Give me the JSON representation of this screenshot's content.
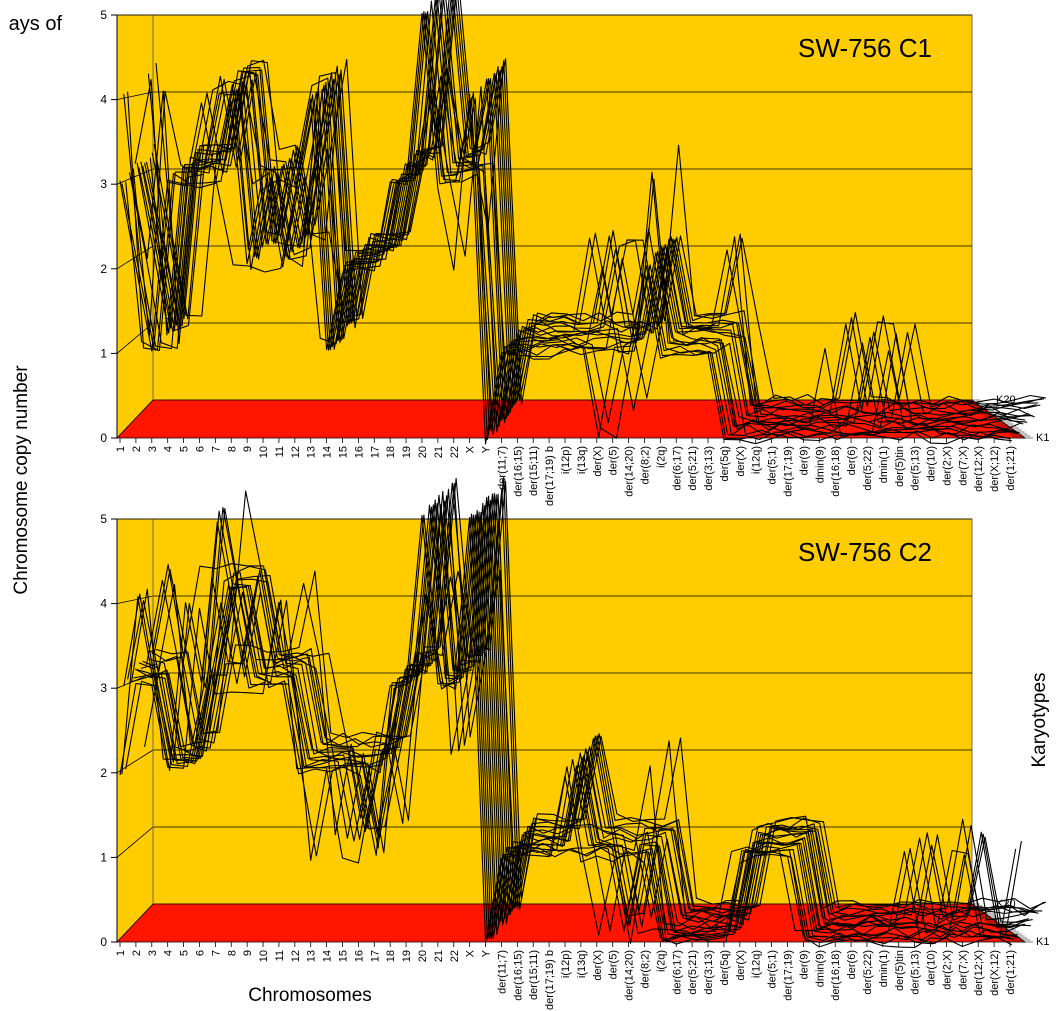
{
  "figure": {
    "cropped_title": "ays of",
    "y_axis_label": "Chromosome copy number",
    "x_axis_label": "Chromosomes",
    "z_axis_label": "Karyotypes"
  },
  "colors": {
    "wall": "#ffcc00",
    "floor": "#ff1500",
    "lines": "#000000"
  },
  "chart_data": [
    {
      "type": "line",
      "title": "SW-756 C1",
      "ylabel": "Chromosome copy number",
      "xlabel": "",
      "zlabel": "Karyotypes",
      "ylim": [
        0,
        5
      ],
      "yticks": [
        "0",
        "1",
        "2",
        "3",
        "4",
        "5"
      ],
      "z_labels": [
        "K1",
        "K20"
      ],
      "n_series": 20,
      "categories": [
        "1",
        "2",
        "3",
        "4",
        "5",
        "6",
        "7",
        "8",
        "9",
        "10",
        "11",
        "12",
        "13",
        "14",
        "15",
        "16",
        "17",
        "18",
        "19",
        "20",
        "21",
        "22",
        "X",
        "Y",
        "der(11;7)",
        "der(16;15)",
        "der(15;11)",
        "der(17;19) b",
        "i(12p)",
        "i(13q)",
        "der(X)",
        "der(5)",
        "der(14;20)",
        "der(8;2)",
        "i(2q)",
        "der(6;17)",
        "der(5;21)",
        "der(3;13)",
        "der(5q)",
        "der(X)",
        "i(12q)",
        "der(5;1)",
        "der(17;19)",
        "der(9)",
        "dmin(9)",
        "der(16;18)",
        "der(6)",
        "der(5;22)",
        "dmin(1)",
        "der(5)tin",
        "der(5;13)",
        "der(10)",
        "der(2;X)",
        "der(7;X)",
        "der(12;X)",
        "der(X;12)",
        "der(1;21)"
      ],
      "values_base": [
        3,
        2,
        1,
        3,
        3,
        3,
        4,
        4,
        2,
        3,
        2,
        3,
        4,
        1,
        2,
        2,
        2,
        3,
        3,
        5,
        3,
        3,
        4,
        0,
        1,
        1,
        1,
        1,
        1,
        1,
        1,
        1,
        1,
        2,
        1,
        1,
        1,
        1,
        0,
        0,
        0,
        0,
        0,
        0,
        0,
        0,
        0,
        0,
        0,
        0,
        0,
        0,
        0,
        0,
        0,
        0,
        0
      ],
      "values_range": [
        [
          3,
          4
        ],
        [
          1,
          4
        ],
        [
          1,
          4
        ],
        [
          1,
          3
        ],
        [
          3,
          3
        ],
        [
          3,
          4
        ],
        [
          3,
          4
        ],
        [
          2,
          4
        ],
        [
          2,
          3
        ],
        [
          2,
          3
        ],
        [
          2,
          3
        ],
        [
          2,
          4
        ],
        [
          1,
          4
        ],
        [
          1,
          2
        ],
        [
          2,
          2
        ],
        [
          2,
          2
        ],
        [
          2,
          3
        ],
        [
          3,
          3
        ],
        [
          3,
          3
        ],
        [
          4,
          5
        ],
        [
          3,
          3
        ],
        [
          2,
          3
        ],
        [
          3,
          4
        ],
        [
          0,
          0
        ],
        [
          1,
          1
        ],
        [
          1,
          1
        ],
        [
          1,
          1
        ],
        [
          1,
          1
        ],
        [
          1,
          2
        ],
        [
          1,
          2
        ],
        [
          0,
          2
        ],
        [
          0,
          2
        ],
        [
          1,
          1
        ],
        [
          2,
          3
        ],
        [
          1,
          1
        ],
        [
          1,
          1
        ],
        [
          1,
          1
        ],
        [
          1,
          2
        ],
        [
          0,
          1
        ],
        [
          0,
          0
        ],
        [
          0,
          0
        ],
        [
          0,
          0
        ],
        [
          0,
          0
        ],
        [
          0,
          0
        ],
        [
          0,
          1
        ],
        [
          0,
          0
        ],
        [
          0,
          1
        ],
        [
          0,
          1
        ],
        [
          0,
          1
        ],
        [
          0,
          0
        ],
        [
          0,
          0
        ],
        [
          0,
          0
        ],
        [
          0,
          0
        ],
        [
          0,
          0
        ],
        [
          0,
          0
        ],
        [
          0,
          0
        ],
        [
          0,
          0
        ]
      ]
    },
    {
      "type": "line",
      "title": "SW-756 C2",
      "ylabel": "Chromosome copy number",
      "xlabel": "Chromosomes",
      "zlabel": "Karyotypes",
      "ylim": [
        0,
        5
      ],
      "yticks": [
        "0",
        "1",
        "2",
        "3",
        "4",
        "5"
      ],
      "z_labels": [
        "K1",
        "K20"
      ],
      "n_series": 20,
      "categories": [
        "1",
        "2",
        "3",
        "4",
        "5",
        "6",
        "7",
        "8",
        "9",
        "10",
        "11",
        "12",
        "13",
        "14",
        "15",
        "16",
        "17",
        "18",
        "19",
        "20",
        "21",
        "22",
        "X",
        "Y",
        "der(11;7)",
        "der(16;15)",
        "der(15;11)",
        "der(17;19) b",
        "i(12p)",
        "i(13q)",
        "der(X)",
        "der(5)",
        "der(14;20)",
        "der(8;2)",
        "i(2q)",
        "der(6;17)",
        "der(5;21)",
        "der(3;13)",
        "der(5q)",
        "der(X)",
        "i(12q)",
        "der(5;1)",
        "der(17;19)",
        "der(9)",
        "dmin(9)",
        "der(16;18)",
        "der(6)",
        "der(5;22)",
        "dmin(1)",
        "der(5)tin",
        "der(5;13)",
        "der(10)",
        "der(2;X)",
        "der(7;X)",
        "der(12;X)",
        "der(X;12)",
        "der(1;21)"
      ],
      "values_base": [
        3,
        3,
        3,
        2,
        2,
        3,
        4,
        4,
        3,
        3,
        3,
        2,
        2,
        2,
        2,
        2,
        2,
        3,
        3,
        5,
        3,
        3,
        5,
        0,
        1,
        1,
        1,
        1,
        2,
        1,
        1,
        1,
        1,
        1,
        0,
        0,
        0,
        0,
        0,
        1,
        1,
        1,
        1,
        0,
        0,
        0,
        0,
        0,
        0,
        0,
        0,
        0,
        0,
        0,
        0,
        0,
        0
      ],
      "values_range": [
        [
          2,
          3
        ],
        [
          3,
          4
        ],
        [
          2,
          4
        ],
        [
          2,
          4
        ],
        [
          2,
          4
        ],
        [
          3,
          4
        ],
        [
          3,
          5
        ],
        [
          3,
          4
        ],
        [
          3,
          4
        ],
        [
          3,
          3
        ],
        [
          3,
          4
        ],
        [
          2,
          3
        ],
        [
          1,
          2
        ],
        [
          1,
          2
        ],
        [
          1,
          2
        ],
        [
          1,
          2
        ],
        [
          1,
          2
        ],
        [
          3,
          3
        ],
        [
          3,
          3
        ],
        [
          4,
          5
        ],
        [
          2,
          3
        ],
        [
          3,
          3
        ],
        [
          4,
          5
        ],
        [
          0,
          0
        ],
        [
          1,
          1
        ],
        [
          1,
          1
        ],
        [
          1,
          1
        ],
        [
          1,
          1
        ],
        [
          1,
          2
        ],
        [
          1,
          1
        ],
        [
          0,
          1
        ],
        [
          0,
          1
        ],
        [
          0,
          1
        ],
        [
          0,
          2
        ],
        [
          0,
          0
        ],
        [
          0,
          0
        ],
        [
          0,
          0
        ],
        [
          0,
          0
        ],
        [
          0,
          1
        ],
        [
          1,
          1
        ],
        [
          1,
          1
        ],
        [
          1,
          1
        ],
        [
          0,
          1
        ],
        [
          0,
          0
        ],
        [
          0,
          0
        ],
        [
          0,
          0
        ],
        [
          0,
          0
        ],
        [
          0,
          0
        ],
        [
          0,
          0
        ],
        [
          0,
          1
        ],
        [
          0,
          1
        ],
        [
          0,
          1
        ],
        [
          0,
          1
        ],
        [
          0,
          1
        ],
        [
          0,
          0
        ],
        [
          0,
          0
        ],
        [
          0,
          1
        ]
      ]
    }
  ]
}
